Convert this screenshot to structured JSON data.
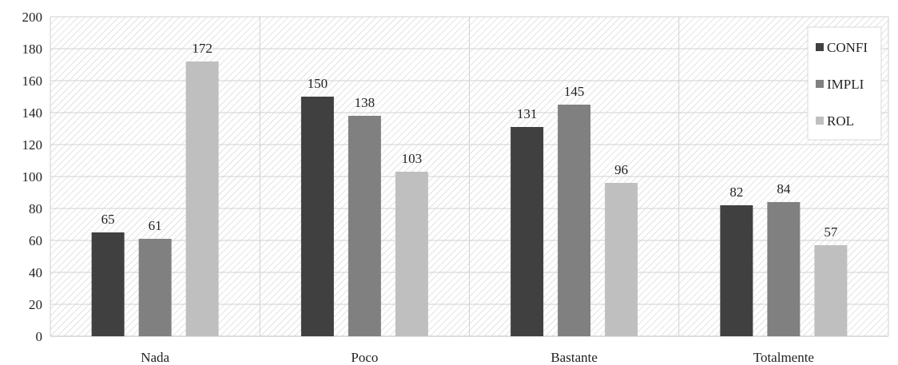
{
  "chart_data": {
    "type": "bar",
    "title": "",
    "xlabel": "",
    "ylabel": "",
    "categories": [
      "Nada",
      "Poco",
      "Bastante",
      "Totalmente"
    ],
    "series": [
      {
        "name": "CONFI",
        "values": [
          65,
          150,
          131,
          82
        ],
        "color": "#404040"
      },
      {
        "name": "IMPLI",
        "values": [
          61,
          138,
          145,
          84
        ],
        "color": "#808080"
      },
      {
        "name": "ROL",
        "values": [
          172,
          103,
          96,
          57
        ],
        "color": "#bfbfbf"
      }
    ],
    "ylim": [
      0,
      200
    ],
    "yticks": [
      0,
      20,
      40,
      60,
      80,
      100,
      120,
      140,
      160,
      180,
      200
    ],
    "ytick_labels": [
      "0",
      "20",
      "40",
      "60",
      "80",
      "100",
      "120",
      "140",
      "160",
      "180",
      "200"
    ],
    "grid": true,
    "background_pattern": "diagonal-hatch",
    "legend_position": "top-right",
    "data_labels": true
  }
}
